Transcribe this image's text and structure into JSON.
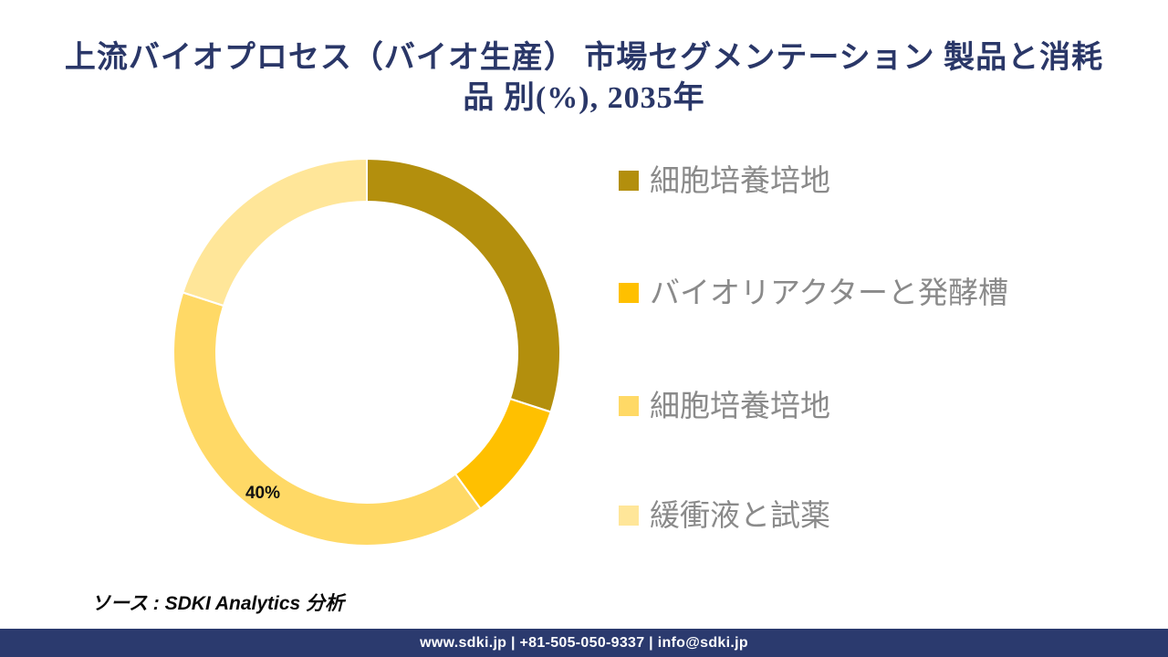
{
  "header": {
    "title_line1": "上流バイオプロセス（バイオ生産） 市場セグメンテーション 製品と消耗",
    "title_line2": "品 別(%), 2035年",
    "title_color": "#2A3768"
  },
  "chart_data": {
    "type": "pie",
    "subtype": "donut",
    "title": "上流バイオプロセス（バイオ生産） 市場セグメンテーション 製品と消耗品 別(%), 2035年",
    "categories": [
      "細胞培養培地",
      "バイオリアクターと発酵槽",
      "細胞培養培地",
      "緩衝液と試薬"
    ],
    "values": [
      30,
      10,
      40,
      20
    ],
    "colors": [
      "#B38F0D",
      "#FFC000",
      "#FFD966",
      "#FFE699"
    ],
    "unit": "%",
    "start_angle_deg": 0,
    "direction": "clockwise",
    "inner_radius_ratio": 0.78,
    "legend_position": "right",
    "visible_data_labels": [
      {
        "text": "40%",
        "category_index": 2
      }
    ]
  },
  "legend": {
    "items": [
      {
        "label": "細胞培養培地",
        "color": "#B38F0D"
      },
      {
        "label": "バイオリアクターと発酵槽",
        "color": "#FFC000"
      },
      {
        "label": "細胞培養培地",
        "color": "#FFD966"
      },
      {
        "label": "緩衝液と試薬",
        "color": "#FFE699"
      }
    ]
  },
  "source": {
    "text": "ソース : SDKI Analytics 分析"
  },
  "footer": {
    "text": "www.sdki.jp | +81-505-050-9337 | info@sdki.jp",
    "background": "#2B3A6E"
  }
}
